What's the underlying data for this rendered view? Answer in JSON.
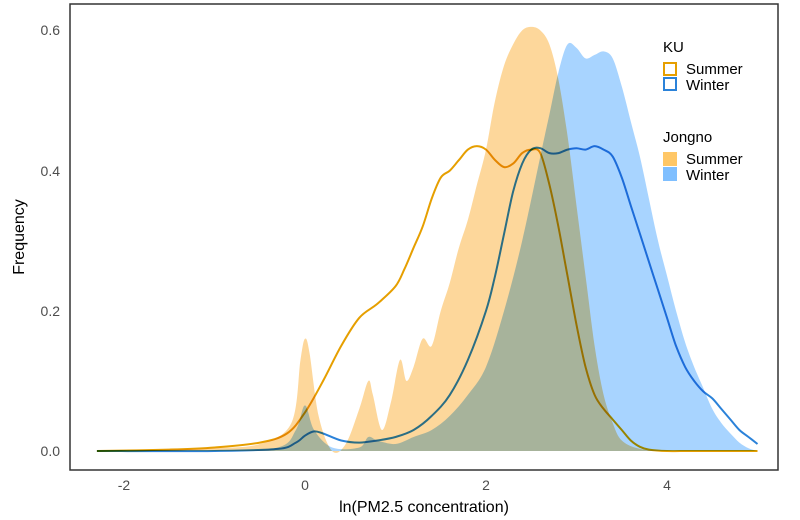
{
  "chart_data": {
    "type": "area",
    "title": "",
    "xlabel": "ln(PM2.5 concentration)",
    "ylabel": "Frequency",
    "xlim": [
      -2.3,
      5.1
    ],
    "ylim": [
      0,
      0.6
    ],
    "x_ticks": [
      -2,
      0,
      2,
      4
    ],
    "y_ticks": [
      0.0,
      0.2,
      0.4,
      0.6
    ],
    "x_tick_labels": [
      "-2",
      "0",
      "2",
      "4"
    ],
    "y_tick_labels": [
      "0.0",
      "0.2",
      "0.4",
      "0.6"
    ],
    "grid": false,
    "legend_position": "top-right inside",
    "legend": [
      {
        "title": "KU",
        "entries": [
          {
            "label": "Summer",
            "style": "outline",
            "color": "#E69F00"
          },
          {
            "label": "Winter",
            "style": "outline",
            "color": "#2B82D9"
          }
        ]
      },
      {
        "title": "Jongno",
        "entries": [
          {
            "label": "Summer",
            "style": "filled",
            "color": "#FFC766"
          },
          {
            "label": "Winter",
            "style": "filled",
            "color": "#7FBFFF"
          }
        ]
      }
    ],
    "series": [
      {
        "name": "Jongno Summer",
        "kind": "filled",
        "color": "#FDD08A",
        "opacity": 0.85,
        "x": [
          -2.3,
          -1.5,
          -1.0,
          -0.5,
          -0.15,
          -0.05,
          0.0,
          0.05,
          0.15,
          0.3,
          0.45,
          0.6,
          0.7,
          0.75,
          0.85,
          0.95,
          1.05,
          1.12,
          1.2,
          1.3,
          1.4,
          1.5,
          1.6,
          1.7,
          1.8,
          1.9,
          2.0,
          2.1,
          2.2,
          2.3,
          2.4,
          2.5,
          2.6,
          2.7,
          2.8,
          2.9,
          3.0,
          3.1,
          3.2,
          3.3,
          3.4,
          3.5,
          3.7,
          4.0,
          5.0
        ],
        "y": [
          0.0,
          0.002,
          0.004,
          0.01,
          0.04,
          0.13,
          0.16,
          0.14,
          0.05,
          0.0,
          0.01,
          0.06,
          0.1,
          0.08,
          0.03,
          0.07,
          0.13,
          0.1,
          0.12,
          0.16,
          0.15,
          0.2,
          0.24,
          0.29,
          0.33,
          0.38,
          0.43,
          0.5,
          0.55,
          0.58,
          0.6,
          0.605,
          0.6,
          0.58,
          0.53,
          0.45,
          0.35,
          0.25,
          0.15,
          0.08,
          0.04,
          0.015,
          0.003,
          0.0,
          0.0
        ]
      },
      {
        "name": "Jongno Winter",
        "kind": "filled",
        "color": "#99CCFF",
        "opacity": 0.85,
        "x": [
          -2.3,
          -1.0,
          -0.3,
          -0.1,
          0.0,
          0.1,
          0.3,
          0.6,
          0.7,
          0.8,
          1.0,
          1.2,
          1.4,
          1.6,
          1.8,
          2.0,
          2.2,
          2.4,
          2.6,
          2.7,
          2.8,
          2.9,
          3.0,
          3.1,
          3.2,
          3.3,
          3.4,
          3.5,
          3.6,
          3.7,
          3.8,
          3.9,
          4.0,
          4.1,
          4.2,
          4.3,
          4.4,
          4.5,
          4.6,
          4.7,
          4.8,
          4.9,
          5.0
        ],
        "y": [
          0.0,
          0.0,
          0.005,
          0.03,
          0.065,
          0.03,
          0.005,
          0.005,
          0.02,
          0.015,
          0.01,
          0.02,
          0.03,
          0.05,
          0.08,
          0.12,
          0.2,
          0.3,
          0.42,
          0.48,
          0.54,
          0.58,
          0.575,
          0.56,
          0.565,
          0.57,
          0.56,
          0.52,
          0.47,
          0.42,
          0.36,
          0.3,
          0.25,
          0.2,
          0.155,
          0.12,
          0.09,
          0.06,
          0.04,
          0.025,
          0.012,
          0.004,
          0.0
        ]
      },
      {
        "name": "KU Summer",
        "kind": "line",
        "color": "#E69F00",
        "x": [
          -2.3,
          -1.5,
          -1.0,
          -0.5,
          -0.2,
          0.0,
          0.2,
          0.4,
          0.6,
          0.8,
          1.0,
          1.1,
          1.2,
          1.3,
          1.4,
          1.5,
          1.6,
          1.7,
          1.8,
          1.9,
          2.0,
          2.1,
          2.2,
          2.3,
          2.4,
          2.5,
          2.6,
          2.7,
          2.8,
          2.9,
          3.0,
          3.1,
          3.2,
          3.3,
          3.4,
          3.5,
          3.6,
          3.7,
          3.8,
          4.0,
          4.3,
          5.0
        ],
        "y": [
          0.0,
          0.002,
          0.005,
          0.012,
          0.025,
          0.055,
          0.1,
          0.15,
          0.19,
          0.21,
          0.235,
          0.26,
          0.29,
          0.32,
          0.36,
          0.39,
          0.4,
          0.415,
          0.43,
          0.435,
          0.43,
          0.415,
          0.405,
          0.41,
          0.425,
          0.43,
          0.425,
          0.38,
          0.32,
          0.25,
          0.18,
          0.12,
          0.08,
          0.06,
          0.045,
          0.03,
          0.015,
          0.006,
          0.002,
          0.0,
          0.0,
          0.0
        ]
      },
      {
        "name": "KU Winter",
        "kind": "line",
        "color": "#2B82D9",
        "x": [
          -2.3,
          -1.0,
          -0.3,
          -0.1,
          0.0,
          0.1,
          0.2,
          0.4,
          0.6,
          0.8,
          1.0,
          1.2,
          1.4,
          1.6,
          1.8,
          2.0,
          2.1,
          2.2,
          2.3,
          2.4,
          2.5,
          2.6,
          2.7,
          2.8,
          2.9,
          3.0,
          3.1,
          3.2,
          3.3,
          3.4,
          3.5,
          3.6,
          3.7,
          3.8,
          3.9,
          4.0,
          4.1,
          4.2,
          4.3,
          4.4,
          4.5,
          4.6,
          4.7,
          4.8,
          4.9,
          5.0
        ],
        "y": [
          0.0,
          0.0,
          0.003,
          0.012,
          0.022,
          0.028,
          0.025,
          0.015,
          0.012,
          0.015,
          0.02,
          0.03,
          0.05,
          0.08,
          0.13,
          0.2,
          0.25,
          0.31,
          0.37,
          0.41,
          0.43,
          0.432,
          0.425,
          0.425,
          0.43,
          0.432,
          0.43,
          0.435,
          0.43,
          0.42,
          0.39,
          0.35,
          0.31,
          0.27,
          0.23,
          0.19,
          0.15,
          0.12,
          0.1,
          0.085,
          0.075,
          0.06,
          0.045,
          0.03,
          0.02,
          0.01
        ]
      }
    ]
  }
}
